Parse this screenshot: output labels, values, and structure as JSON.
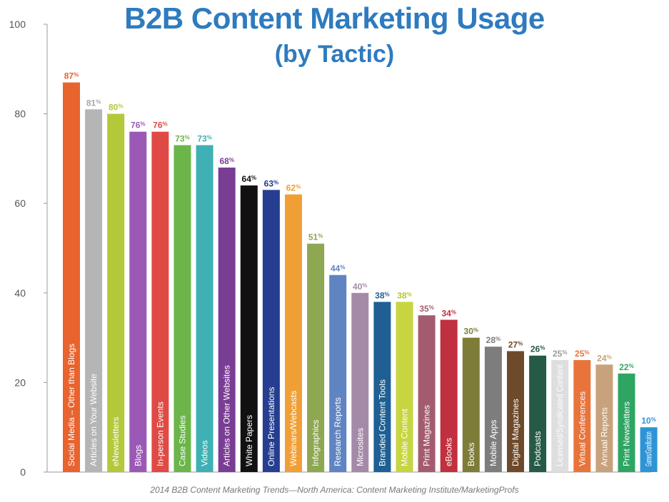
{
  "header": {
    "title": "B2B Content Marketing Usage",
    "subtitle": "(by Tactic)"
  },
  "footer": {
    "source": "2014 B2B Content Marketing Trends—North America: Content Marketing Institute/MarketingProfs"
  },
  "chart_data": {
    "type": "bar",
    "title": "B2B Content Marketing Usage",
    "subtitle": "(by Tactic)",
    "ylim": [
      0,
      100
    ],
    "yticks": [
      0,
      20,
      40,
      60,
      80,
      100
    ],
    "grid": false,
    "value_suffix": "%",
    "categories": [
      "Social Media – Other than Blogs",
      "Articles on Your Website",
      "eNewsletters",
      "Blogs",
      "In-person Events",
      "Case Studies",
      "Videos",
      "Articles on Other Websites",
      "White Papers",
      "Online Presentations",
      "Webinars/Webcasts",
      "Infographics",
      "Research Reports",
      "Microsites",
      "Branded Content Tools",
      "Mobile Content",
      "Print Magazines",
      "eBooks",
      "Books",
      "Mobile Apps",
      "Digital Magazines",
      "Podcasts",
      "Licensed/Syndicated Content",
      "Virtual Conferences",
      "Annual Reports",
      "Print Newsletters",
      "Games/Gamification"
    ],
    "values": [
      87,
      81,
      80,
      76,
      76,
      73,
      73,
      68,
      64,
      63,
      62,
      51,
      44,
      40,
      38,
      38,
      35,
      34,
      30,
      28,
      27,
      26,
      25,
      25,
      24,
      22,
      10
    ],
    "colors": [
      "#e8632e",
      "#b5b5b5",
      "#b4c83a",
      "#9b59b6",
      "#e04a45",
      "#6bb54a",
      "#3fb0b3",
      "#7a3d94",
      "#111111",
      "#253e8f",
      "#f09f35",
      "#8ea752",
      "#5f84c2",
      "#a58aa8",
      "#1f5f93",
      "#c7d541",
      "#a35c6f",
      "#c0303f",
      "#7d7d39",
      "#7d7d7d",
      "#6d4a2a",
      "#255a47",
      "#dedede",
      "#e8743b",
      "#c8a27c",
      "#2fa563",
      "#2d94d6"
    ],
    "label_colors": [
      "#e8632e",
      "#a8a8a8",
      "#b4c83a",
      "#9b59b6",
      "#e04a45",
      "#6bb54a",
      "#3fb0b3",
      "#7a3d94",
      "#111111",
      "#253e8f",
      "#f09f35",
      "#8ea752",
      "#5f84c2",
      "#a58aa8",
      "#1f5f93",
      "#b9c43a",
      "#a35c6f",
      "#c0303f",
      "#7d7d39",
      "#7d7d7d",
      "#6d4a2a",
      "#255a47",
      "#9a9a9a",
      "#e8743b",
      "#c8a27c",
      "#2fa563",
      "#2d94d6"
    ],
    "text_colors": [
      "#ffffff",
      "#222222",
      "#222222",
      "#ffffff",
      "#ffffff",
      "#ffffff",
      "#ffffff",
      "#ffffff",
      "#ffffff",
      "#ffffff",
      "#222222",
      "#ffffff",
      "#ffffff",
      "#ffffff",
      "#ffffff",
      "#222222",
      "#ffffff",
      "#ffffff",
      "#ffffff",
      "#ffffff",
      "#ffffff",
      "#ffffff",
      "#222222",
      "#ffffff",
      "#222222",
      "#ffffff",
      "#222222"
    ]
  }
}
